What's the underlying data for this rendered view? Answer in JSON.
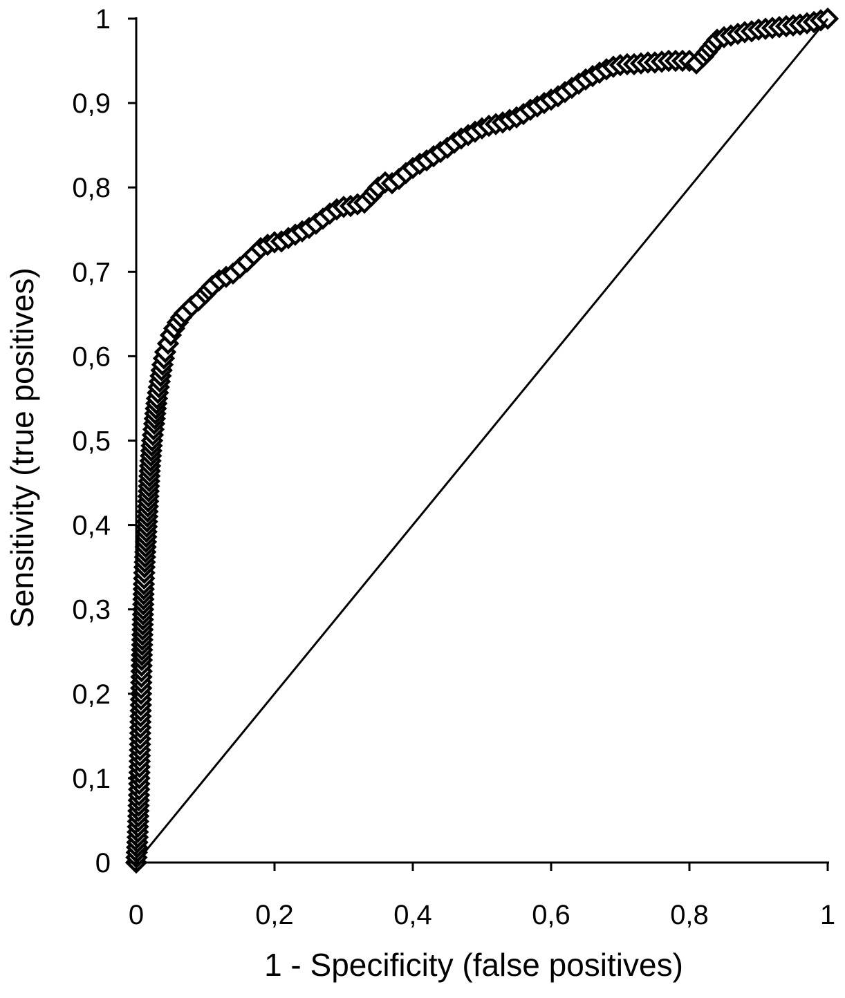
{
  "chart_data": {
    "type": "scatter",
    "xlabel": "1 - Specificity (false positives)",
    "ylabel": "Sensitivity (true positives)",
    "xlim": [
      0,
      1
    ],
    "ylim": [
      0,
      1
    ],
    "x_ticks": [
      "0",
      "0,2",
      "0,4",
      "0,6",
      "0,8",
      "1"
    ],
    "y_ticks": [
      "0",
      "0,1",
      "0,2",
      "0,3",
      "0,4",
      "0,5",
      "0,6",
      "0,7",
      "0,8",
      "0,9",
      "1"
    ],
    "grid": false,
    "legend": "none",
    "marker": "open-diamond",
    "reference_line": {
      "x": [
        0,
        1
      ],
      "y": [
        0,
        1
      ]
    },
    "series": [
      {
        "x": [
          0,
          0.002,
          0.004,
          0.005,
          0.006,
          0.007,
          0.008,
          0.009,
          0.01,
          0.011,
          0.012,
          0.014,
          0.016,
          0.018,
          0.02,
          0.023,
          0.026,
          0.03,
          0.034,
          0.038,
          0.042,
          0.046,
          0.05,
          0.055,
          0.06,
          0.065,
          0.07,
          0.08,
          0.09,
          0.1,
          0.11,
          0.12,
          0.13,
          0.14,
          0.15,
          0.16,
          0.17,
          0.18,
          0.19,
          0.2,
          0.21,
          0.22,
          0.23,
          0.24,
          0.25,
          0.26,
          0.27,
          0.28,
          0.29,
          0.3,
          0.31,
          0.32,
          0.33,
          0.34,
          0.35,
          0.36,
          0.37,
          0.38,
          0.39,
          0.4,
          0.41,
          0.42,
          0.43,
          0.44,
          0.45,
          0.46,
          0.47,
          0.48,
          0.49,
          0.5,
          0.51,
          0.52,
          0.53,
          0.54,
          0.55,
          0.56,
          0.57,
          0.58,
          0.59,
          0.6,
          0.61,
          0.62,
          0.63,
          0.64,
          0.65,
          0.66,
          0.67,
          0.68,
          0.69,
          0.7,
          0.71,
          0.72,
          0.73,
          0.74,
          0.75,
          0.76,
          0.77,
          0.78,
          0.79,
          0.8,
          0.81,
          0.82,
          0.83,
          0.84,
          0.85,
          0.86,
          0.87,
          0.88,
          0.89,
          0.9,
          0.92,
          0.94,
          0.96,
          0.98,
          1.0
        ],
        "y": [
          0,
          0.03,
          0.08,
          0.12,
          0.16,
          0.2,
          0.24,
          0.27,
          0.3,
          0.33,
          0.35,
          0.38,
          0.41,
          0.44,
          0.47,
          0.5,
          0.52,
          0.55,
          0.57,
          0.59,
          0.605,
          0.615,
          0.625,
          0.633,
          0.64,
          0.646,
          0.651,
          0.659,
          0.666,
          0.674,
          0.683,
          0.69,
          0.694,
          0.698,
          0.705,
          0.712,
          0.72,
          0.728,
          0.732,
          0.735,
          0.736,
          0.74,
          0.744,
          0.748,
          0.752,
          0.757,
          0.763,
          0.769,
          0.774,
          0.777,
          0.778,
          0.78,
          0.782,
          0.79,
          0.8,
          0.806,
          0.805,
          0.81,
          0.817,
          0.823,
          0.828,
          0.832,
          0.837,
          0.842,
          0.847,
          0.853,
          0.858,
          0.862,
          0.866,
          0.87,
          0.873,
          0.875,
          0.877,
          0.88,
          0.883,
          0.887,
          0.892,
          0.896,
          0.9,
          0.904,
          0.908,
          0.913,
          0.918,
          0.923,
          0.928,
          0.932,
          0.936,
          0.94,
          0.943,
          0.945,
          0.946,
          0.946,
          0.947,
          0.948,
          0.948,
          0.949,
          0.95,
          0.95,
          0.95,
          0.95,
          0.947,
          0.955,
          0.965,
          0.975,
          0.978,
          0.98,
          0.982,
          0.984,
          0.985,
          0.987,
          0.989,
          0.991,
          0.993,
          0.996,
          1.0
        ]
      }
    ]
  }
}
